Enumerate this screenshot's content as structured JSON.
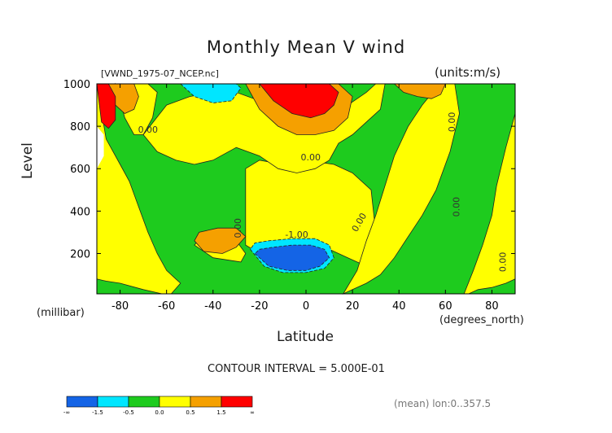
{
  "chart_data": {
    "type": "heatmap",
    "title": "Monthly Mean V wind",
    "source_label": "[VWND_1975-07_NCEP.nc]",
    "units_label": "(units:m/s)",
    "ylabel": "Level",
    "y_unit": "(millibar)",
    "xlabel": "Latitude",
    "x_unit": "(degrees_north)",
    "xlim": [
      -90,
      90
    ],
    "ylim": [
      1000,
      10
    ],
    "x_ticks": [
      -80,
      -60,
      -40,
      -20,
      0,
      20,
      40,
      60,
      80
    ],
    "y_ticks": [
      200,
      400,
      600,
      800,
      1000
    ],
    "contour_interval_text": "CONTOUR INTERVAL = 5.000E-01",
    "contour_labels": [
      "0.00",
      "-1.00"
    ],
    "footer_text": "(mean) lon:0..357.5",
    "colorbar": {
      "boundaries": [
        "-∞",
        "-1.5",
        "-0.5",
        "0.0",
        "0.5",
        "1.5",
        "∞"
      ],
      "colors": [
        "#1464e6",
        "#00e6ff",
        "#1ecb1e",
        "#ffff00",
        "#f5a000",
        "#ff0000"
      ]
    },
    "regions": [
      {
        "level": "+",
        "x": [
          -48,
          -40,
          -28,
          -26,
          -30,
          -35,
          -44,
          -48
        ],
        "y": [
          240,
          180,
          160,
          200,
          260,
          300,
          290,
          240
        ]
      },
      {
        "level": "+",
        "x": [
          -90,
          -86,
          -80,
          -76,
          -72,
          -68,
          -64,
          -60,
          -56,
          -54,
          -58,
          -62,
          -70,
          -80,
          -86,
          -90
        ],
        "y": [
          1000,
          740,
          620,
          540,
          420,
          300,
          200,
          120,
          80,
          60,
          10,
          10,
          30,
          60,
          70,
          80
        ]
      },
      {
        "level": "+",
        "x": [
          -26,
          -20,
          -10,
          0,
          10,
          18,
          24,
          28,
          30,
          28,
          20,
          12,
          0,
          -10,
          -20,
          -26
        ],
        "y": [
          240,
          200,
          220,
          260,
          220,
          180,
          150,
          160,
          300,
          500,
          580,
          620,
          640,
          620,
          640,
          600
        ]
      },
      {
        "level": "+",
        "x": [
          16,
          22,
          26,
          30,
          34,
          38,
          44,
          50,
          56,
          60,
          64,
          66,
          62,
          56,
          50,
          44,
          38,
          32,
          26,
          20,
          16
        ],
        "y": [
          10,
          120,
          260,
          380,
          520,
          660,
          800,
          900,
          980,
          1000,
          1000,
          860,
          680,
          500,
          380,
          280,
          180,
          100,
          60,
          30,
          10
        ]
      },
      {
        "level": "+",
        "x": [
          68,
          72,
          76,
          80,
          82,
          86,
          90,
          90,
          86,
          80,
          74,
          70
        ],
        "y": [
          10,
          120,
          240,
          380,
          520,
          700,
          860,
          80,
          60,
          40,
          30,
          10
        ]
      },
      {
        "level": "+",
        "x": [
          -70,
          -64,
          -56,
          -48,
          -40,
          -30,
          -20,
          -12,
          -4,
          4,
          10,
          14,
          20,
          26,
          32,
          34,
          30,
          26,
          18,
          10,
          0,
          -10,
          -20,
          -30,
          -40,
          -50,
          -60,
          -70
        ],
        "y": [
          760,
          680,
          640,
          620,
          640,
          700,
          660,
          600,
          580,
          600,
          640,
          720,
          760,
          820,
          880,
          1000,
          1000,
          960,
          900,
          860,
          860,
          880,
          920,
          960,
          960,
          940,
          900,
          760
        ]
      },
      {
        "level": "+",
        "x": [
          -82,
          -78,
          -74,
          -70,
          -66,
          -64,
          -68,
          -74,
          -78,
          -82
        ],
        "y": [
          1000,
          840,
          760,
          760,
          840,
          960,
          1000,
          1000,
          960,
          1000
        ]
      },
      {
        "level": "++",
        "x": [
          -26,
          -20,
          -12,
          -4,
          4,
          12,
          18,
          20,
          14,
          6,
          -4,
          -14,
          -24,
          -26
        ],
        "y": [
          1000,
          880,
          800,
          760,
          760,
          780,
          840,
          940,
          1000,
          1000,
          1000,
          1000,
          1000,
          1000
        ]
      },
      {
        "level": "++",
        "x": [
          -48,
          -44,
          -36,
          -30,
          -26,
          -30,
          -38,
          -46,
          -48
        ],
        "y": [
          260,
          210,
          200,
          230,
          280,
          320,
          320,
          300,
          260
        ]
      },
      {
        "level": "++",
        "x": [
          38,
          42,
          48,
          54,
          58,
          60,
          58,
          52,
          46,
          40,
          38
        ],
        "y": [
          1000,
          960,
          940,
          930,
          950,
          1000,
          1000,
          1000,
          1000,
          1000,
          1000
        ]
      },
      {
        "level": "++",
        "x": [
          -86,
          -82,
          -78,
          -74,
          -72,
          -74,
          -78,
          -82,
          -86
        ],
        "y": [
          1000,
          900,
          860,
          880,
          940,
          1000,
          1000,
          1000,
          1000
        ]
      },
      {
        "level": "+++",
        "x": [
          -20,
          -14,
          -6,
          2,
          8,
          12,
          14,
          10,
          2,
          -8,
          -18,
          -20
        ],
        "y": [
          1000,
          920,
          860,
          840,
          860,
          900,
          960,
          1000,
          1000,
          1000,
          1000,
          1000
        ]
      },
      {
        "level": "+++",
        "x": [
          -90,
          -88,
          -85,
          -82,
          -82,
          -85,
          -88,
          -90
        ],
        "y": [
          1000,
          820,
          790,
          830,
          940,
          1000,
          1000,
          1000
        ]
      },
      {
        "level": "-",
        "x": [
          -24,
          -18,
          -10,
          0,
          8,
          12,
          10,
          4,
          -6,
          -16,
          -22,
          -24
        ],
        "y": [
          220,
          140,
          110,
          110,
          130,
          180,
          240,
          270,
          270,
          260,
          250,
          220
        ]
      },
      {
        "level": "--",
        "x": [
          -22,
          -16,
          -8,
          0,
          6,
          10,
          8,
          2,
          -6,
          -14,
          -20,
          -22
        ],
        "y": [
          200,
          140,
          120,
          120,
          140,
          180,
          220,
          240,
          240,
          230,
          220,
          200
        ]
      },
      {
        "level": "-",
        "x": [
          -54,
          -48,
          -40,
          -32,
          -28,
          -30,
          -36,
          -46,
          -52,
          -54
        ],
        "y": [
          1000,
          940,
          910,
          920,
          980,
          1000,
          1000,
          1000,
          1000,
          1000
        ]
      }
    ]
  }
}
